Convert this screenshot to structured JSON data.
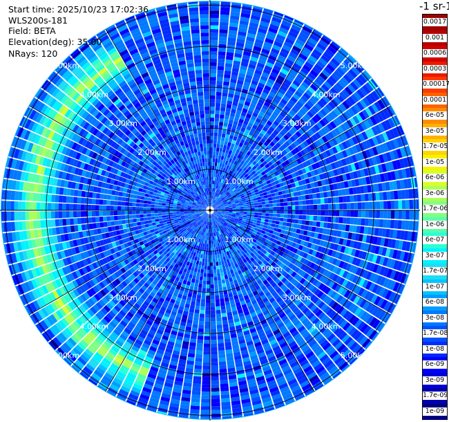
{
  "info": {
    "start_time": "Start time: 2025/10/23 17:02:36",
    "instrument": "WLS200s-181",
    "field": "Field: BETA",
    "elevation": "Elevation(deg): 35.00",
    "nrays": "NRays: 120"
  },
  "colorbar": {
    "title": "-1 sr-1",
    "levels": [
      {
        "label": "0.0017",
        "color": "#9e0000"
      },
      {
        "label": "0.001",
        "color": "#b50000"
      },
      {
        "label": "0.0006",
        "color": "#d20000"
      },
      {
        "label": "0.0003",
        "color": "#ee1800"
      },
      {
        "label": "0.00017",
        "color": "#ff3a00"
      },
      {
        "label": "0.0001",
        "color": "#ff6200"
      },
      {
        "label": "6e-05",
        "color": "#ff8c00"
      },
      {
        "label": "3e-05",
        "color": "#ffb000"
      },
      {
        "label": "1.7e-05",
        "color": "#ffd500"
      },
      {
        "label": "1e-05",
        "color": "#f4f400"
      },
      {
        "label": "6e-06",
        "color": "#d8ff2c"
      },
      {
        "label": "3e-06",
        "color": "#acff58"
      },
      {
        "label": "1.7e-06",
        "color": "#82ff82"
      },
      {
        "label": "1e-06",
        "color": "#56ffaa"
      },
      {
        "label": "6e-07",
        "color": "#2affd4"
      },
      {
        "label": "3e-07",
        "color": "#00f2ff"
      },
      {
        "label": "1.7e-07",
        "color": "#1edcf4"
      },
      {
        "label": "1e-07",
        "color": "#00c4ff"
      },
      {
        "label": "6e-08",
        "color": "#009cff"
      },
      {
        "label": "3e-08",
        "color": "#0078ff"
      },
      {
        "label": "1.7e-08",
        "color": "#0052ff"
      },
      {
        "label": "1e-08",
        "color": "#002cff"
      },
      {
        "label": "6e-09",
        "color": "#0000ff"
      },
      {
        "label": "3e-09",
        "color": "#0000d6"
      },
      {
        "label": "1.7e-09",
        "color": "#0000ac"
      },
      {
        "label": "1e-09",
        "color": "#000080"
      }
    ]
  },
  "chart_data": {
    "type": "heatmap",
    "projection": "polar-ppi",
    "field": "BETA",
    "elevation_deg": 35.0,
    "n_rays": 120,
    "range_rings_km": [
      1.0,
      2.0,
      3.0,
      4.0,
      5.0
    ],
    "range_ring_labels": [
      "1.00km",
      "2.00km",
      "3.00km",
      "4.00km",
      "5.00km"
    ],
    "max_range_km": 5.1,
    "value_scale": "log",
    "value_range": [
      1e-09,
      0.0017
    ],
    "background_level": 2e-08,
    "enhanced_region": {
      "azimuth_deg_from": 200,
      "azimuth_deg_to": 330,
      "range_km_from": 3.6,
      "range_km_to": 4.9,
      "peak_level": 5e-06
    }
  }
}
